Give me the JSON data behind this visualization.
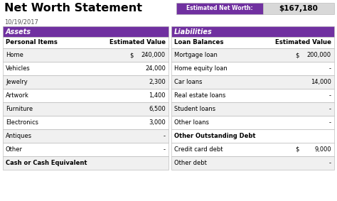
{
  "title": "Net Worth Statement",
  "date": "10/19/2017",
  "net_worth_label": "Estimated Net Worth:",
  "net_worth_value": "$167,180",
  "purple": "#7030a0",
  "white": "#ffffff",
  "light_gray": "#f0f0f0",
  "black": "#000000",
  "text_gray": "#555555",
  "border_color": "#b0b0b0",
  "nw_gray": "#d8d8d8",
  "assets_header": "Assets",
  "assets_col1": "Personal Items",
  "assets_col2": "Estimated Value",
  "assets_rows": [
    [
      "Home",
      "$",
      "240,000"
    ],
    [
      "Vehicles",
      "",
      "24,000"
    ],
    [
      "Jewelry",
      "",
      "2,300"
    ],
    [
      "Artwork",
      "",
      "1,400"
    ],
    [
      "Furniture",
      "",
      "6,500"
    ],
    [
      "Electronics",
      "",
      "3,000"
    ],
    [
      "Antiques",
      "",
      "-"
    ],
    [
      "Other",
      "",
      "-"
    ],
    [
      "Cash or Cash Equivalent",
      "",
      ""
    ]
  ],
  "liabilities_header": "Liabilities",
  "liabilities_col1": "Loan Balances",
  "liabilities_col2": "Estimated Value",
  "liabilities_rows": [
    [
      "Mortgage loan",
      "$",
      "200,000"
    ],
    [
      "Home equity loan",
      "",
      "-"
    ],
    [
      "Car loans",
      "",
      "14,000"
    ],
    [
      "Real estate loans",
      "",
      "-"
    ],
    [
      "Student loans",
      "",
      "-"
    ],
    [
      "Other loans",
      "",
      "-"
    ],
    [
      "Other Outstanding Debt",
      "",
      ""
    ],
    [
      "Credit card debt",
      "$",
      "9,000"
    ],
    [
      "Other debt",
      "",
      "-"
    ]
  ],
  "fig_w": 4.74,
  "fig_h": 2.83,
  "dpi": 100
}
